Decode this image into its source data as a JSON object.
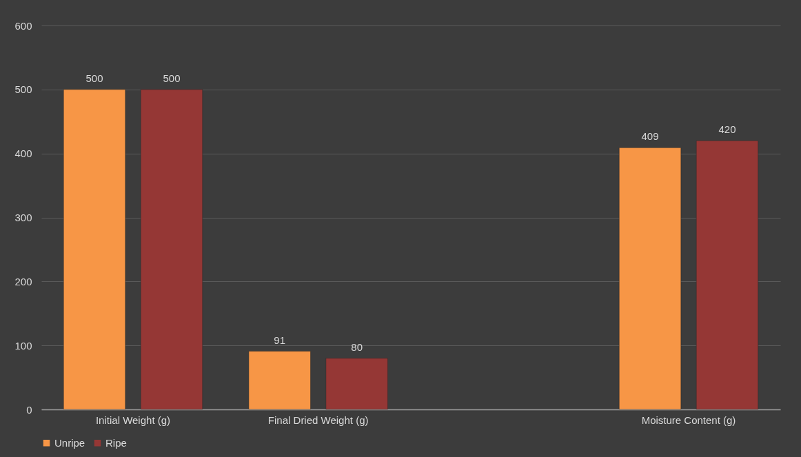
{
  "chart_data": {
    "type": "bar",
    "categories": [
      "Initial Weight (g)",
      "Final Dried Weight (g)",
      null,
      "Moisture Content (g)"
    ],
    "series": [
      {
        "name": "Unripe",
        "color": "#f79646",
        "values": [
          500,
          91,
          null,
          409
        ]
      },
      {
        "name": "Ripe",
        "color": "#953735",
        "values": [
          500,
          80,
          null,
          420
        ]
      }
    ],
    "ylim": [
      0,
      600
    ],
    "yticks": [
      0,
      100,
      200,
      300,
      400,
      500,
      600
    ],
    "grid": "y",
    "legend": "bottom",
    "data_labels": true
  }
}
